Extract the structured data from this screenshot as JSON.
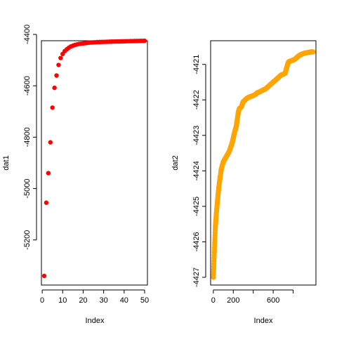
{
  "chart_data": [
    {
      "type": "scatter",
      "xlabel": "Index",
      "ylabel": "dat1",
      "xlim": [
        1,
        50
      ],
      "ylim": [
        -5340,
        -4400
      ],
      "xticks": [
        0,
        10,
        20,
        30,
        40,
        50
      ],
      "yticks": [
        -5200,
        -5000,
        -4800,
        -4600,
        -4400
      ],
      "point_color": "#ff0000",
      "x": [
        1,
        2,
        3,
        4,
        5,
        6,
        7,
        8,
        9,
        10,
        11,
        12,
        13,
        14,
        15,
        16,
        17,
        18,
        19,
        20,
        21,
        22,
        23,
        24,
        25,
        26,
        27,
        28,
        29,
        30,
        31,
        32,
        33,
        34,
        35,
        36,
        37,
        38,
        39,
        40,
        41,
        42,
        43,
        44,
        45,
        46,
        47,
        48,
        49,
        50
      ],
      "y": [
        -5340,
        -5055,
        -4940,
        -4820,
        -4685,
        -4608,
        -4560,
        -4519,
        -4492,
        -4476,
        -4465,
        -4458,
        -4452,
        -4447,
        -4444,
        -4441,
        -4439,
        -4437,
        -4436,
        -4435,
        -4434,
        -4433,
        -4432,
        -4431.5,
        -4431,
        -4430.5,
        -4430,
        -4429.7,
        -4429.4,
        -4429.1,
        -4428.8,
        -4428.5,
        -4428.2,
        -4428,
        -4427.8,
        -4427.6,
        -4427.4,
        -4427.2,
        -4427,
        -4426.8,
        -4426.6,
        -4426.4,
        -4426.2,
        -4426,
        -4425.8,
        -4425.6,
        -4425.4,
        -4425.2,
        -4425,
        -4424.8
      ]
    },
    {
      "type": "scatter",
      "xlabel": "Index",
      "ylabel": "dat2",
      "xlim": [
        1,
        1000
      ],
      "ylim": [
        -4427,
        -4420.65
      ],
      "xticks": [
        0,
        200,
        600
      ],
      "yticks": [
        -4427,
        -4426,
        -4425,
        -4424,
        -4423,
        -4422,
        -4421
      ],
      "minor_xticks": [
        400,
        800
      ],
      "point_color": "#ffa500",
      "curve_x": [
        1,
        5,
        10,
        20,
        30,
        40,
        50,
        60,
        70,
        80,
        90,
        100,
        130,
        160,
        190,
        210,
        230,
        250,
        260,
        280,
        300,
        320,
        340,
        360,
        380,
        400,
        420,
        440,
        460,
        480,
        500,
        520,
        540,
        560,
        580,
        600,
        620,
        640,
        660,
        680,
        700,
        720,
        740,
        750,
        760,
        780,
        800,
        820,
        840,
        860,
        880,
        900,
        920,
        940,
        960,
        980,
        1000
      ],
      "curve_y": [
        -4427,
        -4426.7,
        -4426.3,
        -4425.6,
        -4425.2,
        -4424.9,
        -4424.6,
        -4424.35,
        -4424.15,
        -4423.95,
        -4423.85,
        -4423.75,
        -4423.6,
        -4423.45,
        -4423.2,
        -4422.95,
        -4422.75,
        -4422.35,
        -4422.25,
        -4422.2,
        -4422.05,
        -4422.0,
        -4421.95,
        -4421.92,
        -4421.9,
        -4421.88,
        -4421.85,
        -4421.8,
        -4421.78,
        -4421.75,
        -4421.72,
        -4421.7,
        -4421.65,
        -4421.6,
        -4421.55,
        -4421.5,
        -4421.45,
        -4421.4,
        -4421.35,
        -4421.3,
        -4421.28,
        -4421.25,
        -4421.05,
        -4420.95,
        -4420.92,
        -4420.9,
        -4420.88,
        -4420.85,
        -4420.8,
        -4420.75,
        -4420.72,
        -4420.7,
        -4420.68,
        -4420.67,
        -4420.66,
        -4420.65,
        -4420.65
      ]
    }
  ]
}
